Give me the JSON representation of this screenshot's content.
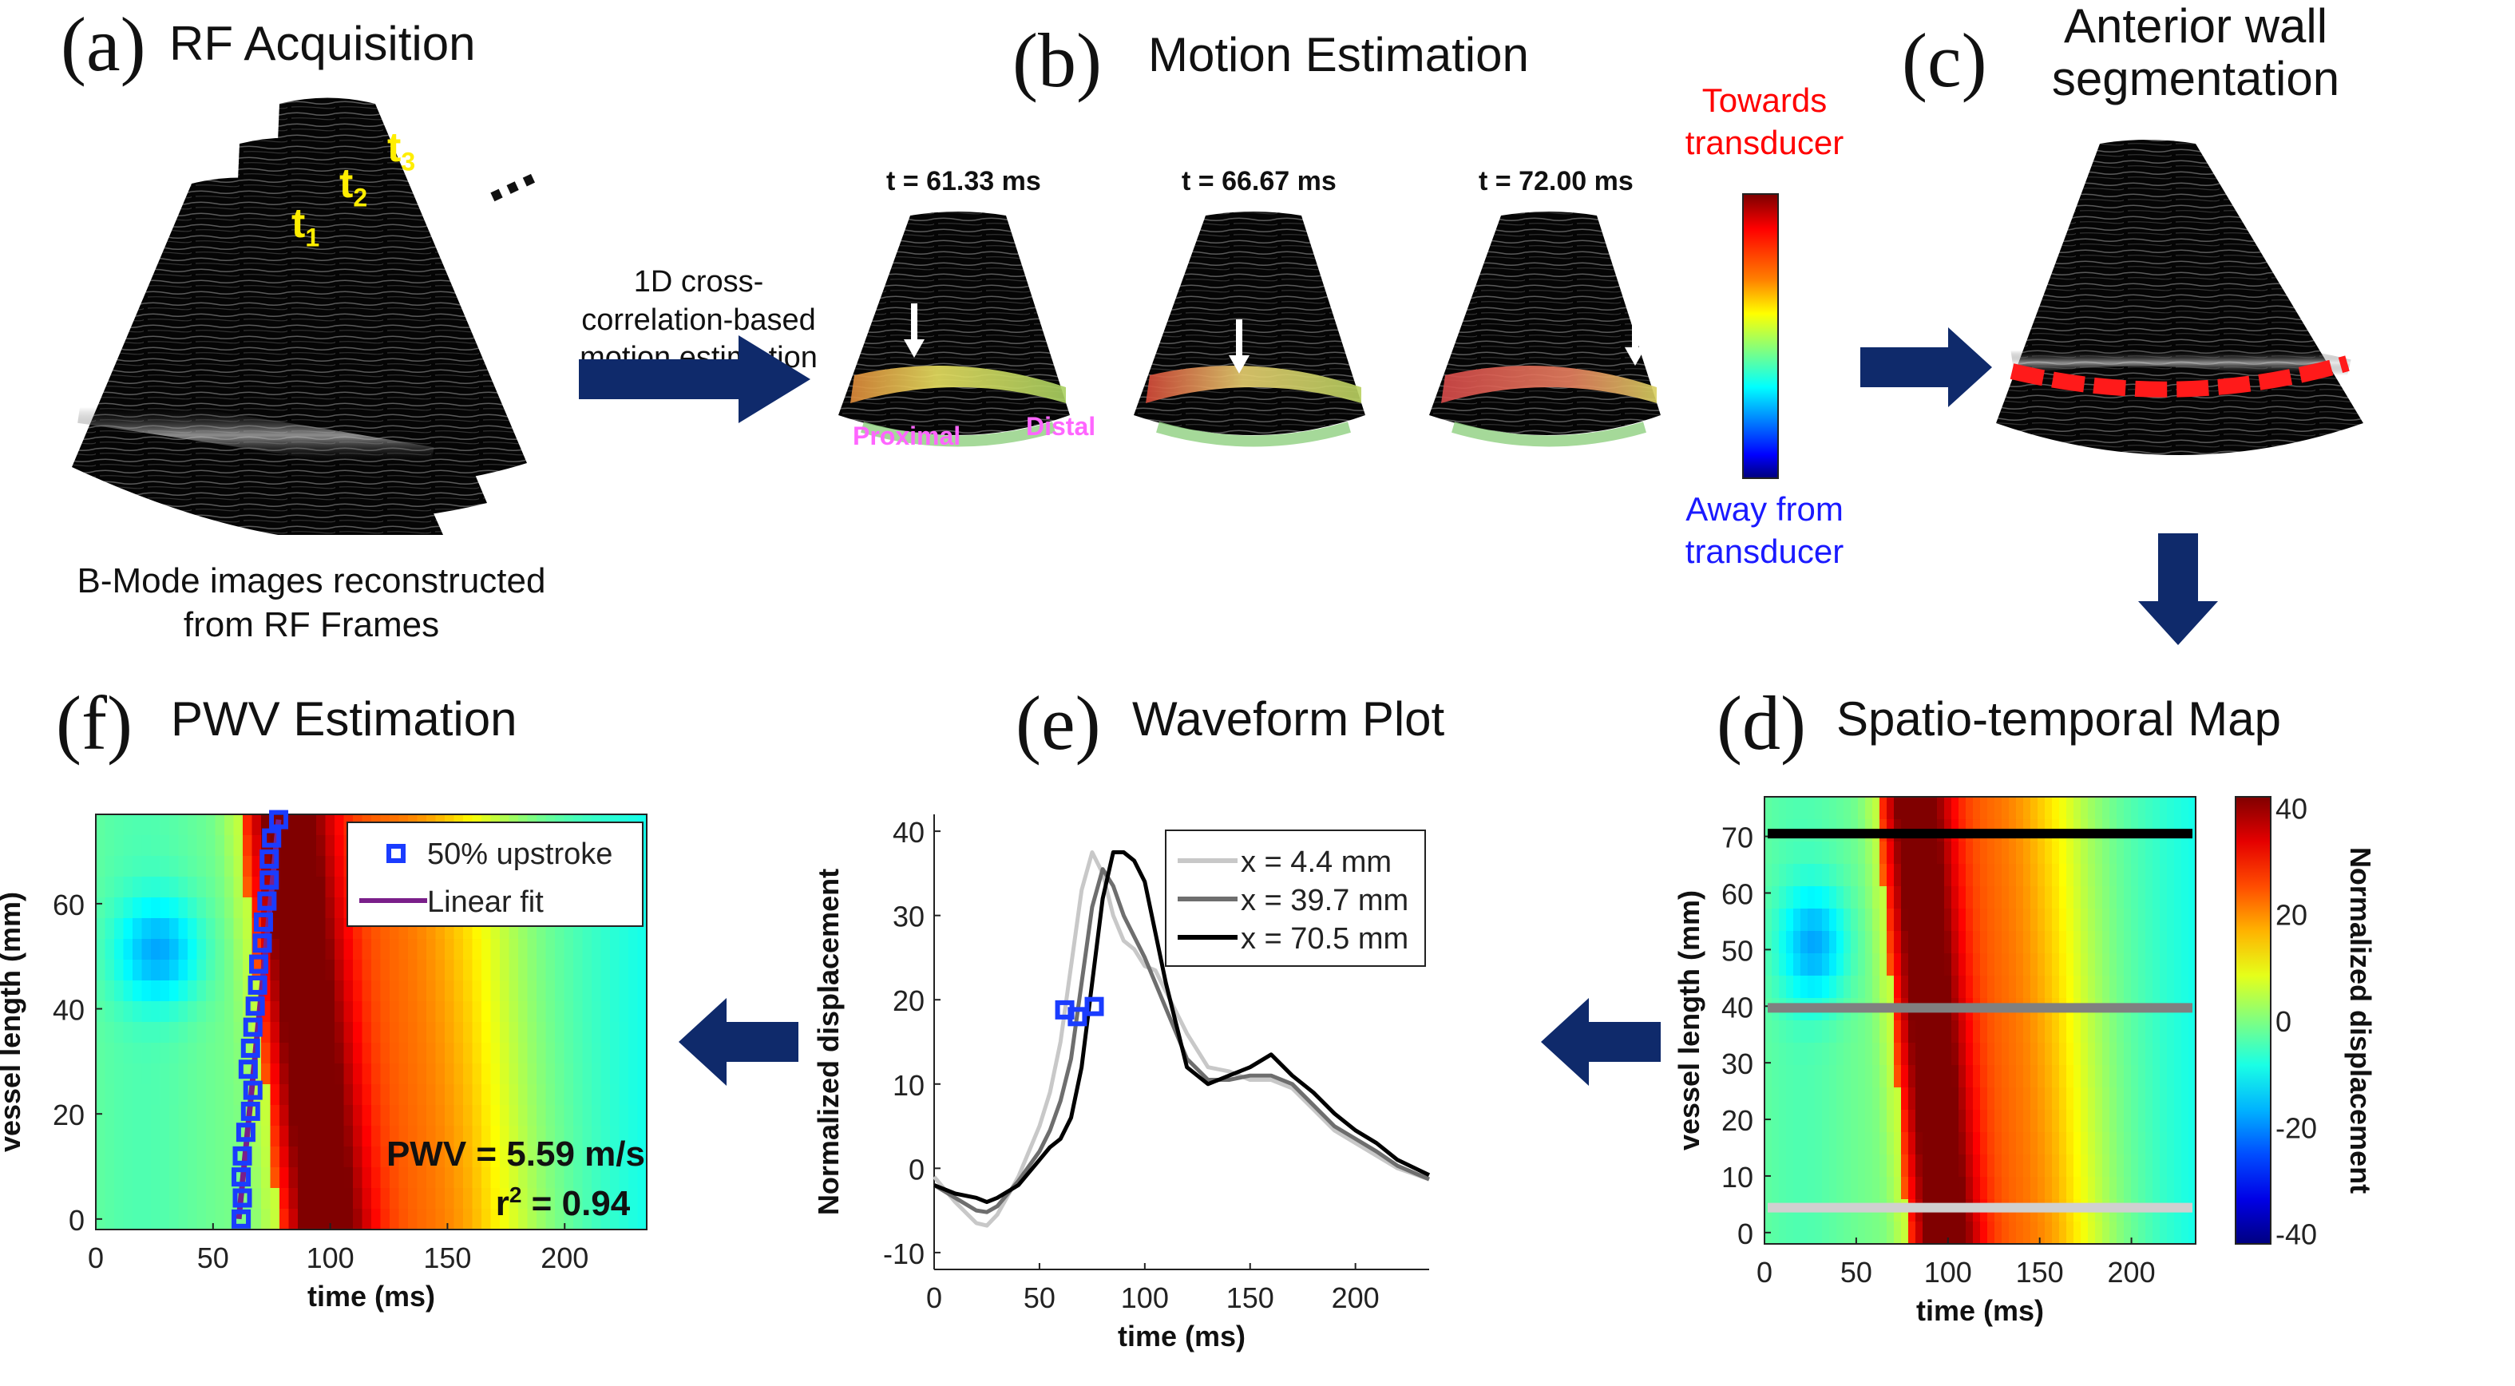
{
  "colors": {
    "arrow": "#0f2a6b",
    "towards": "#ff0000",
    "away": "#1a1aff",
    "t_label": "#ffee00",
    "region_label": "#ff66ff",
    "marker": "#1a3cff",
    "fit": "#7a1f8a"
  },
  "panels": {
    "a": {
      "letter": "(a)",
      "title": "RF Acquisition",
      "frames": [
        "t1",
        "t2",
        "t3"
      ],
      "frame_sub": [
        "1",
        "2",
        "3"
      ],
      "ellipsis": "...",
      "caption_line1": "B-Mode images reconstructed",
      "caption_line2": "from RF Frames"
    },
    "arrow_ab": {
      "line1": "1D cross-",
      "line2": "correlation-based",
      "line3": "motion estimation"
    },
    "b": {
      "letter": "(b)",
      "title": "Motion Estimation",
      "frames": [
        {
          "time": "t = 61.33 ms"
        },
        {
          "time": "t = 66.67 ms"
        },
        {
          "time": "t = 72.00 ms"
        }
      ],
      "proximal": "Proximal",
      "distal": "Distal",
      "colorbar_top_line1": "Towards",
      "colorbar_top_line2": "transducer",
      "colorbar_bottom_line1": "Away from",
      "colorbar_bottom_line2": "transducer"
    },
    "c": {
      "letter": "(c)",
      "title_line1": "Anterior wall",
      "title_line2": "segmentation"
    },
    "d": {
      "letter": "(d)",
      "title": "Spatio-temporal Map"
    },
    "e": {
      "letter": "(e)",
      "title": "Waveform Plot"
    },
    "f": {
      "letter": "(f)",
      "title": "PWV Estimation",
      "pwv_text": "PWV = 5.59 m/s",
      "r2_prefix": "r",
      "r2_sup": "2",
      "r2_value": " = 0.94"
    }
  },
  "chart_data": [
    {
      "id": "d",
      "type": "heatmap",
      "title": "Spatio-temporal Map",
      "xlabel": "time (ms)",
      "ylabel": "vessel length (mm)",
      "xlim": [
        0,
        235
      ],
      "ylim": [
        77,
        -2
      ],
      "xticks": [
        0,
        50,
        100,
        150,
        200
      ],
      "yticks": [
        0,
        10,
        20,
        30,
        40,
        50,
        60,
        70
      ],
      "colorbar": {
        "label": "Normalized displacement",
        "range": [
          -42,
          42
        ],
        "ticks": [
          40,
          20,
          0,
          -20,
          -40
        ],
        "colormap": "jet"
      },
      "overlay_lines": [
        {
          "y": 4.4,
          "color": "#d0d0d0"
        },
        {
          "y": 39.7,
          "color": "#808080"
        },
        {
          "y": 70.5,
          "color": "#000000"
        }
      ],
      "wavefront": {
        "onset_ms_at_0mm": 62,
        "onset_ms_at_77mm": 78,
        "peak_value": 40
      }
    },
    {
      "id": "e",
      "type": "line",
      "title": "Waveform Plot",
      "xlabel": "time (ms)",
      "ylabel": "Normalized displacement",
      "xlim": [
        0,
        235
      ],
      "ylim": [
        -12,
        42
      ],
      "xticks": [
        0,
        50,
        100,
        150,
        200
      ],
      "yticks": [
        -10,
        0,
        10,
        20,
        30,
        40
      ],
      "legend": "top-right",
      "x": [
        0,
        10,
        20,
        25,
        30,
        40,
        50,
        55,
        60,
        65,
        70,
        75,
        80,
        85,
        90,
        95,
        100,
        105,
        110,
        120,
        130,
        140,
        150,
        160,
        170,
        180,
        190,
        200,
        210,
        220,
        235
      ],
      "series": [
        {
          "name": "x = 4.4 mm",
          "color": "#c8c8c8",
          "values": [
            -1,
            -4,
            -6.5,
            -6.8,
            -5.5,
            -1,
            5,
            9,
            15,
            24,
            33,
            37.5,
            35,
            30,
            27,
            26,
            24,
            23.5,
            21,
            16,
            12,
            11.5,
            10.5,
            10.5,
            9.5,
            7,
            4.5,
            3,
            1.5,
            0,
            -1.3
          ]
        },
        {
          "name": "x = 39.7 mm",
          "color": "#6e6e6e",
          "values": [
            -2,
            -3.5,
            -5,
            -5.2,
            -4.5,
            -1.5,
            2,
            4.5,
            8,
            13,
            22,
            31,
            35.5,
            33.5,
            30,
            27.5,
            25,
            22,
            19,
            13,
            10.5,
            10.5,
            11,
            11,
            10,
            7.5,
            5,
            3.5,
            2,
            0.3,
            -1.3
          ]
        },
        {
          "name": "x = 70.5 mm",
          "color": "#000000",
          "values": [
            -2,
            -3,
            -3.5,
            -4,
            -3.5,
            -2,
            1,
            2.5,
            3.5,
            6,
            12,
            22,
            32,
            37.5,
            37.5,
            36.5,
            34,
            28,
            22,
            12,
            10,
            11,
            12,
            13.5,
            11,
            9,
            6.5,
            4.5,
            3,
            1,
            -0.8
          ]
        }
      ],
      "markers_50pct": [
        {
          "series": "x = 4.4 mm",
          "x": 62,
          "y": 18.8
        },
        {
          "series": "x = 39.7 mm",
          "x": 68,
          "y": 18
        },
        {
          "series": "x = 70.5 mm",
          "x": 76,
          "y": 19.2
        }
      ]
    },
    {
      "id": "f",
      "type": "scatter",
      "title": "PWV Estimation",
      "xlabel": "time (ms)",
      "ylabel": "vessel length (mm)",
      "xlim": [
        0,
        235
      ],
      "ylim": [
        77,
        -2
      ],
      "xticks": [
        0,
        50,
        100,
        150,
        200
      ],
      "yticks": [
        0,
        20,
        40,
        60
      ],
      "legend": "top-right",
      "series": [
        {
          "name": "50% upstroke",
          "marker": "square",
          "x": [
            62,
            62.5,
            62,
            62.5,
            64,
            66,
            67,
            65,
            66,
            67,
            68,
            69,
            69.5,
            71,
            71.5,
            73,
            74,
            74,
            75,
            78
          ],
          "y": [
            0,
            4,
            8,
            12,
            16.5,
            20.5,
            24.5,
            28.5,
            32.5,
            36.5,
            40.5,
            44.5,
            48.5,
            52.5,
            56.5,
            60.5,
            64.5,
            68.5,
            72.5,
            76
          ]
        },
        {
          "name": "Linear fit",
          "type": "line",
          "x": [
            61,
            78
          ],
          "y": [
            0,
            76
          ]
        }
      ],
      "annotation": {
        "pwv": "PWV = 5.59 m/s",
        "r2": "r² = 0.94"
      },
      "background": "heatmap (same as d)"
    }
  ],
  "labels": {
    "time_ms": "time (ms)",
    "vessel_length": "vessel length (mm)",
    "norm_disp": "Normalized displacement"
  }
}
